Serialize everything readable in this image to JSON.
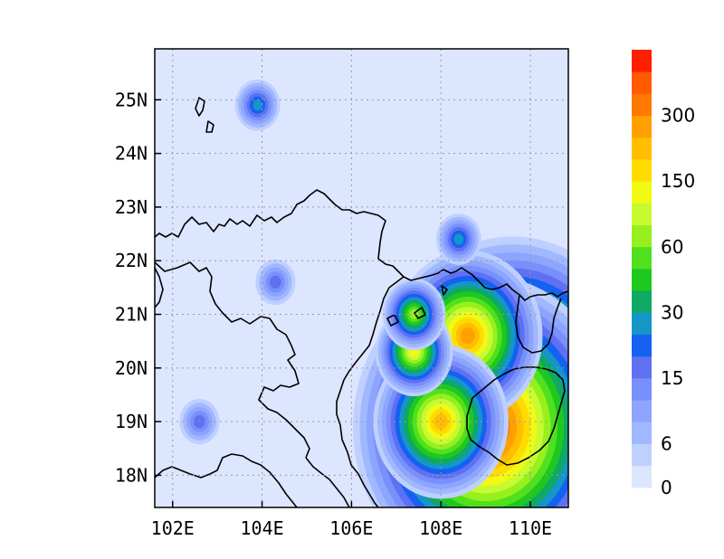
{
  "map": {
    "type": "heatmap",
    "x_ticks": [
      "102E",
      "104E",
      "106E",
      "108E",
      "110E"
    ],
    "x_tick_values": [
      102,
      104,
      106,
      108,
      110
    ],
    "y_ticks": [
      "18N",
      "19N",
      "20N",
      "21N",
      "22N",
      "23N",
      "24N",
      "25N"
    ],
    "y_tick_values": [
      18,
      19,
      20,
      21,
      22,
      23,
      24,
      25
    ],
    "lon_range": [
      101.6,
      110.85
    ],
    "lat_range": [
      17.4,
      25.95
    ],
    "grid": true,
    "legend_placement": "right",
    "colorbar": {
      "colors": [
        "#dde6ff",
        "#bfd0ff",
        "#a0b8ff",
        "#8da5ff",
        "#7890fb",
        "#5f70f2",
        "#1461f2",
        "#1496c8",
        "#0fa864",
        "#1ec81e",
        "#50e01e",
        "#96f01e",
        "#c8fa32",
        "#f0fa14",
        "#ffdc00",
        "#ffbe00",
        "#ffa000",
        "#ff7800",
        "#ff5a00",
        "#ff1e00"
      ],
      "labels": [
        "0",
        "6",
        "15",
        "30",
        "60",
        "150",
        "300"
      ],
      "label_positions": [
        0,
        2,
        5,
        8,
        11,
        14,
        17
      ]
    },
    "precip_peaks": [
      {
        "lon": 109.6,
        "lat": 19.55,
        "value": 330
      },
      {
        "lon": 109.0,
        "lat": 18.9,
        "value": 320
      },
      {
        "lon": 108.6,
        "lat": 20.6,
        "value": 160
      },
      {
        "lon": 108.0,
        "lat": 19.0,
        "value": 140
      },
      {
        "lon": 107.4,
        "lat": 20.3,
        "value": 60
      },
      {
        "lon": 107.4,
        "lat": 21.0,
        "value": 40
      },
      {
        "lon": 108.4,
        "lat": 22.4,
        "value": 15
      },
      {
        "lon": 103.9,
        "lat": 24.9,
        "value": 15
      },
      {
        "lon": 104.3,
        "lat": 21.6,
        "value": 8
      },
      {
        "lon": 102.6,
        "lat": 19.0,
        "value": 8
      }
    ]
  }
}
